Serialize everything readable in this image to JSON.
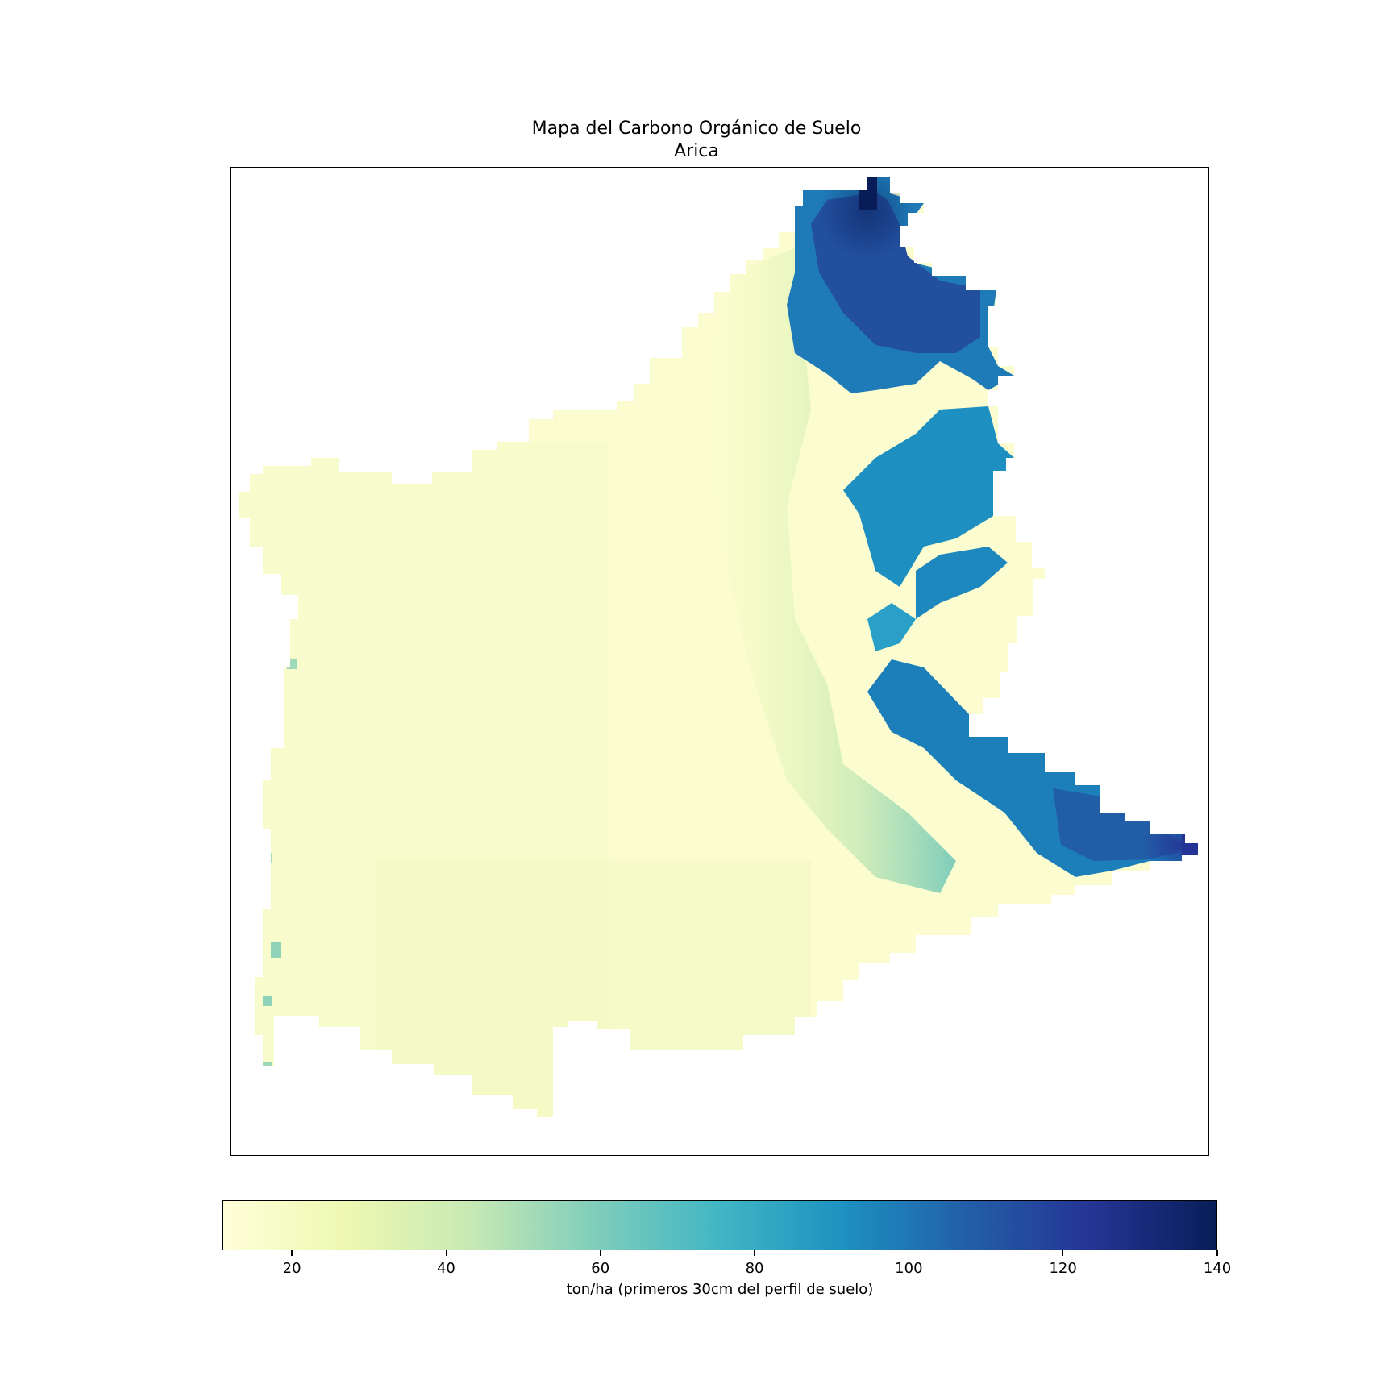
{
  "map": {
    "title": "Mapa del Carbono Orgánico de Suelo",
    "subtitle": "Arica",
    "colormap": "YlGnBu",
    "region": "Arica",
    "value_pattern": "Most of the region (western and central lowlands) has low soil organic carbon around 15-30 ton/ha; high values 80-140 ton/ha occur along the eastern altiplano edge, with the maximum at the northern tip and the southeastern corner."
  },
  "colorbar": {
    "label": "ton/ha (primeros 30cm del perfil de suelo)",
    "min": 11,
    "max": 140,
    "ticks": [
      "20",
      "40",
      "60",
      "80",
      "100",
      "120",
      "140"
    ],
    "stops": [
      "#ffffd9",
      "#edf8b1",
      "#c7e9b4",
      "#7fcdbb",
      "#41b6c4",
      "#1d91c0",
      "#225ea8",
      "#253494",
      "#081d58"
    ]
  }
}
